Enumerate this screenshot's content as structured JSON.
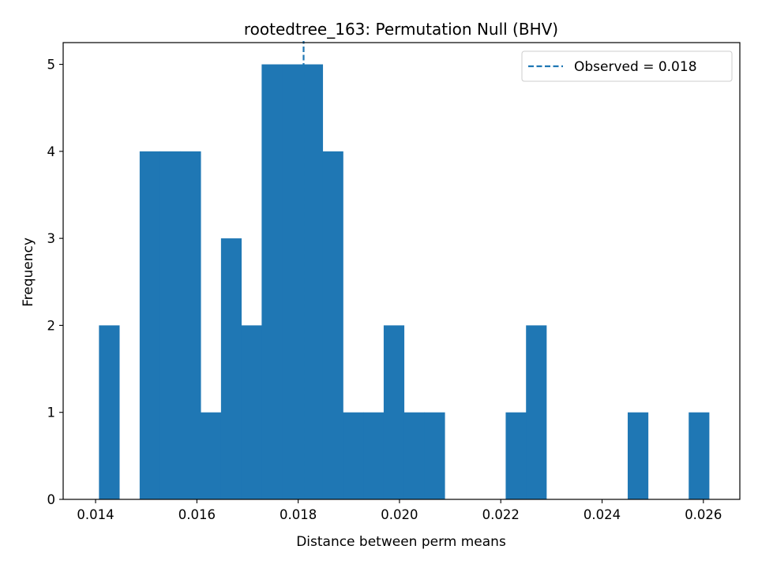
{
  "chart_data": {
    "type": "bar",
    "title": "rootedtree_163: Permutation Null (BHV)",
    "xlabel": "Distance between perm means",
    "ylabel": "Frequency",
    "xlim": [
      0.01336,
      0.02672
    ],
    "ylim": [
      0,
      5.25
    ],
    "xticks": [
      0.014,
      0.016,
      0.018,
      0.02,
      0.022,
      0.024,
      0.026
    ],
    "xtick_labels": [
      "0.014",
      "0.016",
      "0.018",
      "0.020",
      "0.022",
      "0.024",
      "0.026"
    ],
    "yticks": [
      0,
      1,
      2,
      3,
      4,
      5
    ],
    "ytick_labels": [
      "0",
      "1",
      "2",
      "3",
      "4",
      "5"
    ],
    "bin_start": 0.014067,
    "bin_width": 0.0004015,
    "counts": [
      2,
      0,
      4,
      4,
      4,
      1,
      3,
      2,
      5,
      5,
      5,
      4,
      1,
      1,
      2,
      1,
      1,
      0,
      0,
      0,
      1,
      2,
      0,
      0,
      0,
      0,
      1,
      0,
      0,
      1
    ],
    "bar_color": "#1f77b4",
    "observed": {
      "value": 0.018107,
      "label": "Observed = 0.018",
      "color": "#1f77b4",
      "style": "dashed"
    },
    "legend": {
      "position": "top-right",
      "entries": [
        "Observed = 0.018"
      ]
    },
    "grid": false
  }
}
